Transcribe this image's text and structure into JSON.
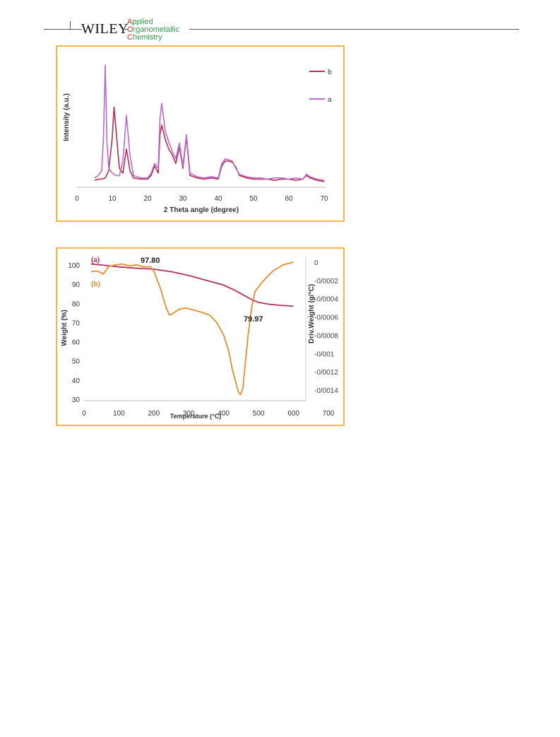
{
  "header": {
    "publisher": "WILEY",
    "journal_lines": [
      {
        "cap": "A",
        "rest": "pplied"
      },
      {
        "cap": "O",
        "rest": "rganometallic"
      },
      {
        "cap": "C",
        "rest": "hemistry"
      }
    ]
  },
  "colors": {
    "panel_border": "#f2b84b",
    "series_a_xrd": "#b86ad0",
    "series_b_xrd": "#b5304f",
    "tga_weight": "#b5305a",
    "tga_deriv": "#ea8b2c"
  },
  "chart_data": [
    {
      "type": "line",
      "title": "",
      "xlabel": "2 Theta angle (degree)",
      "ylabel": "Intensity  (a.u.)",
      "xlim": [
        0,
        70
      ],
      "xticks": [
        0,
        10,
        20,
        30,
        40,
        50,
        60,
        70
      ],
      "grid": false,
      "legend": "top-right",
      "series": [
        {
          "name": "b",
          "x": [
            5,
            6,
            7,
            8,
            9,
            10,
            10.5,
            11,
            12,
            13,
            14,
            15,
            16,
            18,
            20,
            21,
            22,
            23,
            23.5,
            24,
            25,
            26,
            27,
            28,
            29,
            30,
            31,
            32,
            34,
            36,
            38,
            40,
            41,
            42,
            43,
            44,
            45,
            46,
            48,
            50,
            52,
            54,
            56,
            58,
            60,
            62,
            64,
            65,
            66,
            68,
            70
          ],
          "y": [
            4,
            5,
            5,
            6,
            12,
            40,
            65,
            48,
            14,
            10,
            30,
            12,
            6,
            5,
            5,
            8,
            16,
            10,
            42,
            50,
            38,
            30,
            25,
            18,
            32,
            14,
            40,
            8,
            6,
            5,
            6,
            5,
            16,
            20,
            20,
            19,
            15,
            8,
            6,
            5,
            5,
            5,
            4,
            5,
            5,
            4,
            5,
            8,
            6,
            4,
            3
          ]
        },
        {
          "name": "a",
          "x": [
            5,
            6,
            7,
            7.5,
            8,
            8.5,
            9,
            10,
            11,
            12,
            13,
            14,
            15,
            16,
            18,
            20,
            21,
            22,
            23,
            23.5,
            24,
            25,
            26,
            27,
            28,
            29,
            30,
            31,
            32,
            34,
            36,
            38,
            40,
            41,
            42,
            43,
            44,
            45,
            46,
            48,
            50,
            52,
            54,
            56,
            58,
            60,
            62,
            64,
            65,
            66,
            68,
            70
          ],
          "y": [
            6,
            8,
            12,
            40,
            100,
            35,
            14,
            10,
            8,
            8,
            20,
            58,
            25,
            8,
            6,
            6,
            10,
            18,
            14,
            55,
            68,
            45,
            36,
            28,
            22,
            35,
            16,
            42,
            10,
            7,
            6,
            7,
            6,
            18,
            22,
            21,
            20,
            14,
            9,
            7,
            6,
            6,
            5,
            6,
            6,
            5,
            6,
            5,
            9,
            7,
            5,
            4
          ]
        }
      ]
    },
    {
      "type": "line",
      "title": "",
      "xlabel": "Temperature (°C)",
      "ylabel": "Weight (%)",
      "y2label": "Driv.Weight (g/°C)",
      "xlim": [
        0,
        700
      ],
      "xticks": [
        0,
        100,
        200,
        300,
        400,
        500,
        600,
        700
      ],
      "ylim": [
        30,
        100
      ],
      "yticks": [
        30,
        40,
        50,
        60,
        70,
        80,
        90,
        100
      ],
      "y2lim": [
        -0.0015,
        0
      ],
      "y2ticks": [
        "0",
        "-0/0002",
        "-0/0004",
        "-0/0006",
        "-0/0008",
        "-0/001",
        "-0/0012",
        "-0/0014"
      ],
      "grid": false,
      "annotations": [
        "97.80",
        "79.97"
      ],
      "series": [
        {
          "name": "(a)",
          "axis": "left",
          "x": [
            20,
            50,
            100,
            150,
            200,
            250,
            300,
            350,
            400,
            430,
            460,
            480,
            500,
            530,
            560,
            600
          ],
          "y": [
            100.5,
            100,
            99,
            98.3,
            97.8,
            96.5,
            94.5,
            92,
            89.5,
            87,
            84,
            82,
            80.5,
            79.5,
            79,
            78.5
          ]
        },
        {
          "name": "(b)",
          "axis": "right",
          "x": [
            20,
            40,
            55,
            70,
            90,
            110,
            130,
            150,
            170,
            190,
            200,
            220,
            235,
            245,
            255,
            270,
            290,
            310,
            330,
            360,
            380,
            400,
            415,
            425,
            435,
            442,
            448,
            455,
            462,
            470,
            480,
            490,
            510,
            540,
            570,
            600
          ],
          "y": [
            -0.0001,
            -0.0001,
            -0.00013,
            -5e-05,
            -3e-05,
            -2e-05,
            -4e-05,
            -3e-05,
            -5e-05,
            -5e-05,
            -0.0001,
            -0.0003,
            -0.0005,
            -0.00058,
            -0.00056,
            -0.00052,
            -0.0005,
            -0.00052,
            -0.00054,
            -0.00058,
            -0.00066,
            -0.0008,
            -0.00098,
            -0.00118,
            -0.00132,
            -0.00142,
            -0.00145,
            -0.00138,
            -0.0011,
            -0.0008,
            -0.0005,
            -0.00032,
            -0.00022,
            -0.0001,
            -3e-05,
            0
          ]
        }
      ]
    }
  ]
}
